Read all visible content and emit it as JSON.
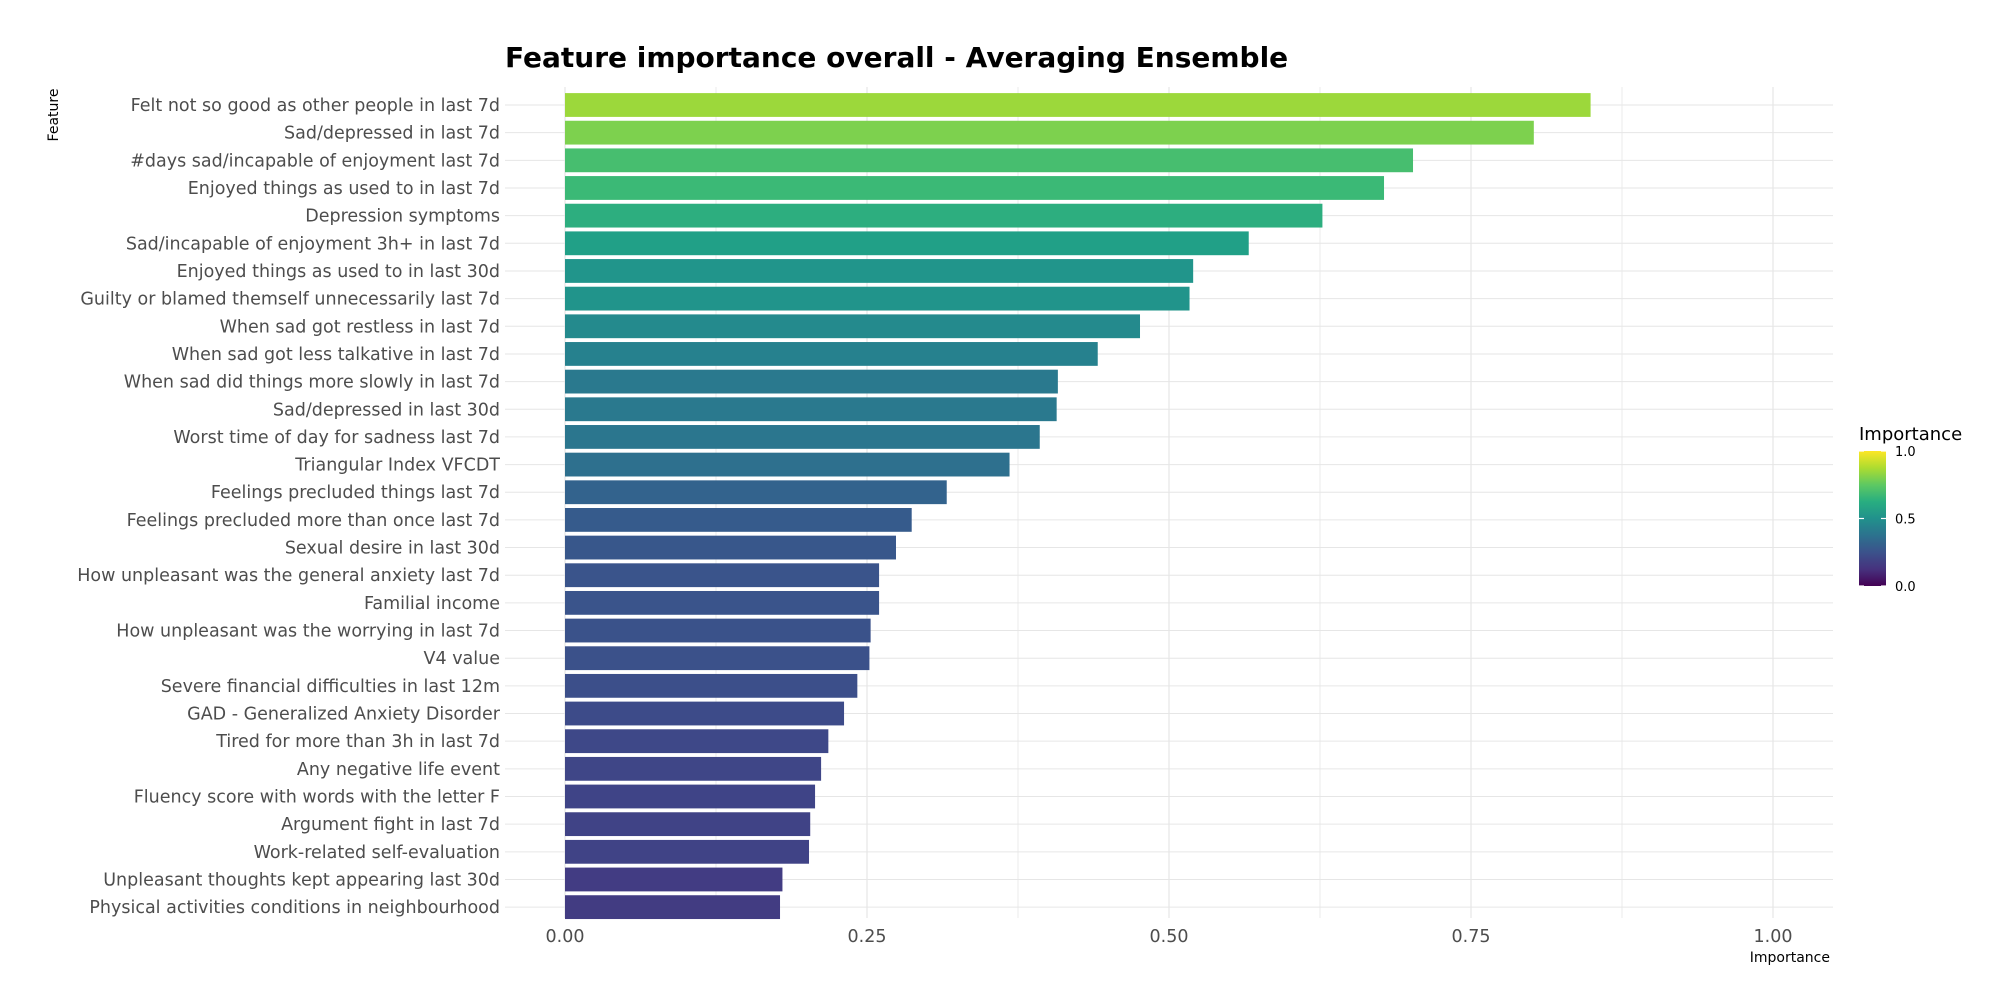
{
  "chart_data": {
    "type": "bar",
    "orientation": "horizontal",
    "title": "Feature importance overall - Averaging Ensemble",
    "xlabel": "Importance",
    "ylabel": "Feature",
    "xlim": [
      0,
      1.05
    ],
    "xticks": [
      "0.00",
      "0.25",
      "0.50",
      "0.75",
      "1.00"
    ],
    "grid": true,
    "colorscale": "viridis",
    "categories": [
      "Felt not so good as other people in last 7d",
      "Sad/depressed in last 7d",
      "#days sad/incapable of enjoyment last 7d",
      "Enjoyed things as used to in last 7d",
      "Depression symptoms",
      "Sad/incapable of enjoyment 3h+ in last 7d",
      "Enjoyed things as used to in last 30d",
      "Guilty or blamed themself unnecessarily last 7d",
      "When sad got restless in last 7d",
      "When sad got less talkative in last 7d",
      "When sad did things more slowly in last 7d",
      "Sad/depressed in last 30d",
      "Worst time of day for sadness last 7d",
      "Triangular Index VFCDT",
      "Feelings precluded things last 7d",
      "Feelings precluded more than once last 7d",
      "Sexual desire in last 30d",
      "How unpleasant was the general anxiety last 7d",
      "Familial income",
      "How unpleasant was the worrying in last 7d",
      "V4 value",
      "Severe financial difficulties in last 12m",
      "GAD - Generalized Anxiety Disorder",
      "Tired for more than 3h in last 7d",
      "Any negative life event",
      "Fluency score with words with the letter F",
      "Argument fight in last 7d",
      "Work-related self-evaluation",
      "Unpleasant thoughts kept appearing last 30d",
      "Physical activities conditions in neighbourhood"
    ],
    "values": [
      0.849,
      0.802,
      0.702,
      0.678,
      0.627,
      0.566,
      0.52,
      0.517,
      0.476,
      0.441,
      0.408,
      0.407,
      0.393,
      0.368,
      0.316,
      0.287,
      0.274,
      0.26,
      0.26,
      0.253,
      0.252,
      0.242,
      0.231,
      0.218,
      0.212,
      0.207,
      0.203,
      0.202,
      0.18,
      0.178
    ],
    "legend": {
      "title": "Importance",
      "ticks": [
        "1.0",
        "0.5",
        "0.0"
      ],
      "placement": "right"
    }
  }
}
